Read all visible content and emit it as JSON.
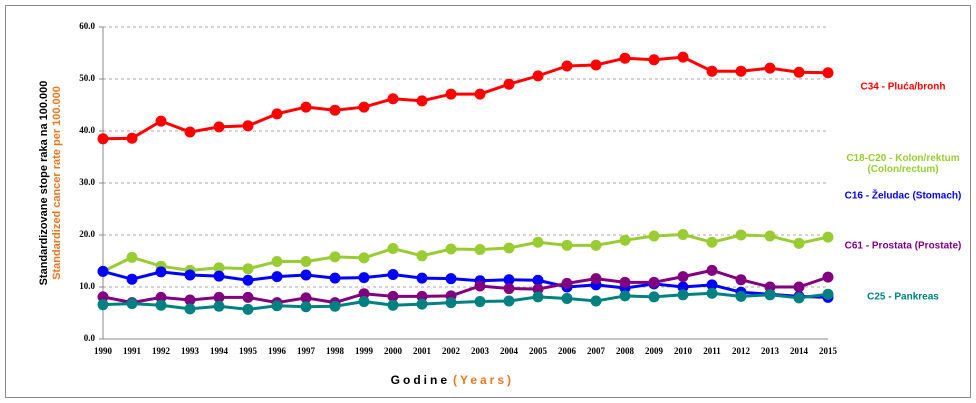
{
  "chart_data": {
    "type": "line",
    "y_label": "Standardizovane stope raka na 100.000",
    "y_label_en": "Standardized cancer rate per 100.000",
    "x_label": "Godine",
    "x_label_en": "(Years)",
    "categories": [
      "1990",
      "1991",
      "1992",
      "1993",
      "1994",
      "1995",
      "1996",
      "1997",
      "1998",
      "1999",
      "2000",
      "2001",
      "2002",
      "2003",
      "2004",
      "2005",
      "2006",
      "2007",
      "2008",
      "2009",
      "2010",
      "2011",
      "2012",
      "2013",
      "2014",
      "2015"
    ],
    "ylim": [
      0,
      60
    ],
    "yticks": [
      {
        "value": 0,
        "label": "0.0"
      },
      {
        "value": 10,
        "label": "10.0"
      },
      {
        "value": 20,
        "label": "20.0"
      },
      {
        "value": 30,
        "label": "30.0"
      },
      {
        "value": 40,
        "label": "40.0"
      },
      {
        "value": 50,
        "label": "50.0"
      },
      {
        "value": 60,
        "label": "60.0"
      }
    ],
    "grid": true,
    "series": [
      {
        "name": "C34 - Pluća/bronh",
        "color": "#ff0000",
        "values": [
          38.5,
          38.6,
          41.9,
          39.8,
          40.8,
          41.0,
          43.3,
          44.6,
          44.0,
          44.6,
          46.2,
          45.8,
          47.1,
          47.1,
          49.0,
          50.6,
          52.5,
          52.7,
          54.0,
          53.7,
          54.2,
          51.5,
          51.5,
          52.1,
          51.3,
          51.2
        ]
      },
      {
        "name": "C18-C20 - Kolon/rektum (Colon/rectum)",
        "color": "#99cc33",
        "values": [
          13.0,
          15.7,
          14.0,
          13.2,
          13.7,
          13.5,
          14.9,
          14.9,
          15.8,
          15.6,
          17.4,
          16.0,
          17.3,
          17.2,
          17.5,
          18.6,
          18.0,
          18.0,
          19.0,
          19.8,
          20.1,
          18.6,
          20.0,
          19.8,
          18.4,
          19.6
        ]
      },
      {
        "name": "C16 - Želudac  (Stomach)",
        "color": "#0000ff",
        "values": [
          13.0,
          11.5,
          12.9,
          12.3,
          12.1,
          11.3,
          12.0,
          12.3,
          11.7,
          11.8,
          12.4,
          11.7,
          11.6,
          11.2,
          11.4,
          11.3,
          10.0,
          10.4,
          9.8,
          10.6,
          10.0,
          10.4,
          9.0,
          8.6,
          8.2,
          8.0
        ]
      },
      {
        "name": "C61 - Prostata (Prostate)",
        "color": "#800080",
        "values": [
          8.1,
          7.0,
          8.0,
          7.5,
          8.0,
          8.0,
          7.0,
          7.9,
          7.0,
          8.7,
          8.2,
          8.2,
          8.3,
          10.2,
          9.7,
          9.6,
          10.7,
          11.6,
          10.9,
          10.9,
          12.0,
          13.2,
          11.4,
          10.0,
          10.0,
          11.9
        ]
      },
      {
        "name": "C25 - Pankreas",
        "color": "#008080",
        "values": [
          6.6,
          6.8,
          6.5,
          5.8,
          6.3,
          5.7,
          6.4,
          6.2,
          6.3,
          7.2,
          6.5,
          6.7,
          7.0,
          7.2,
          7.3,
          8.1,
          7.8,
          7.3,
          8.3,
          8.1,
          8.5,
          8.8,
          8.2,
          8.5,
          7.9,
          8.6
        ]
      }
    ]
  }
}
